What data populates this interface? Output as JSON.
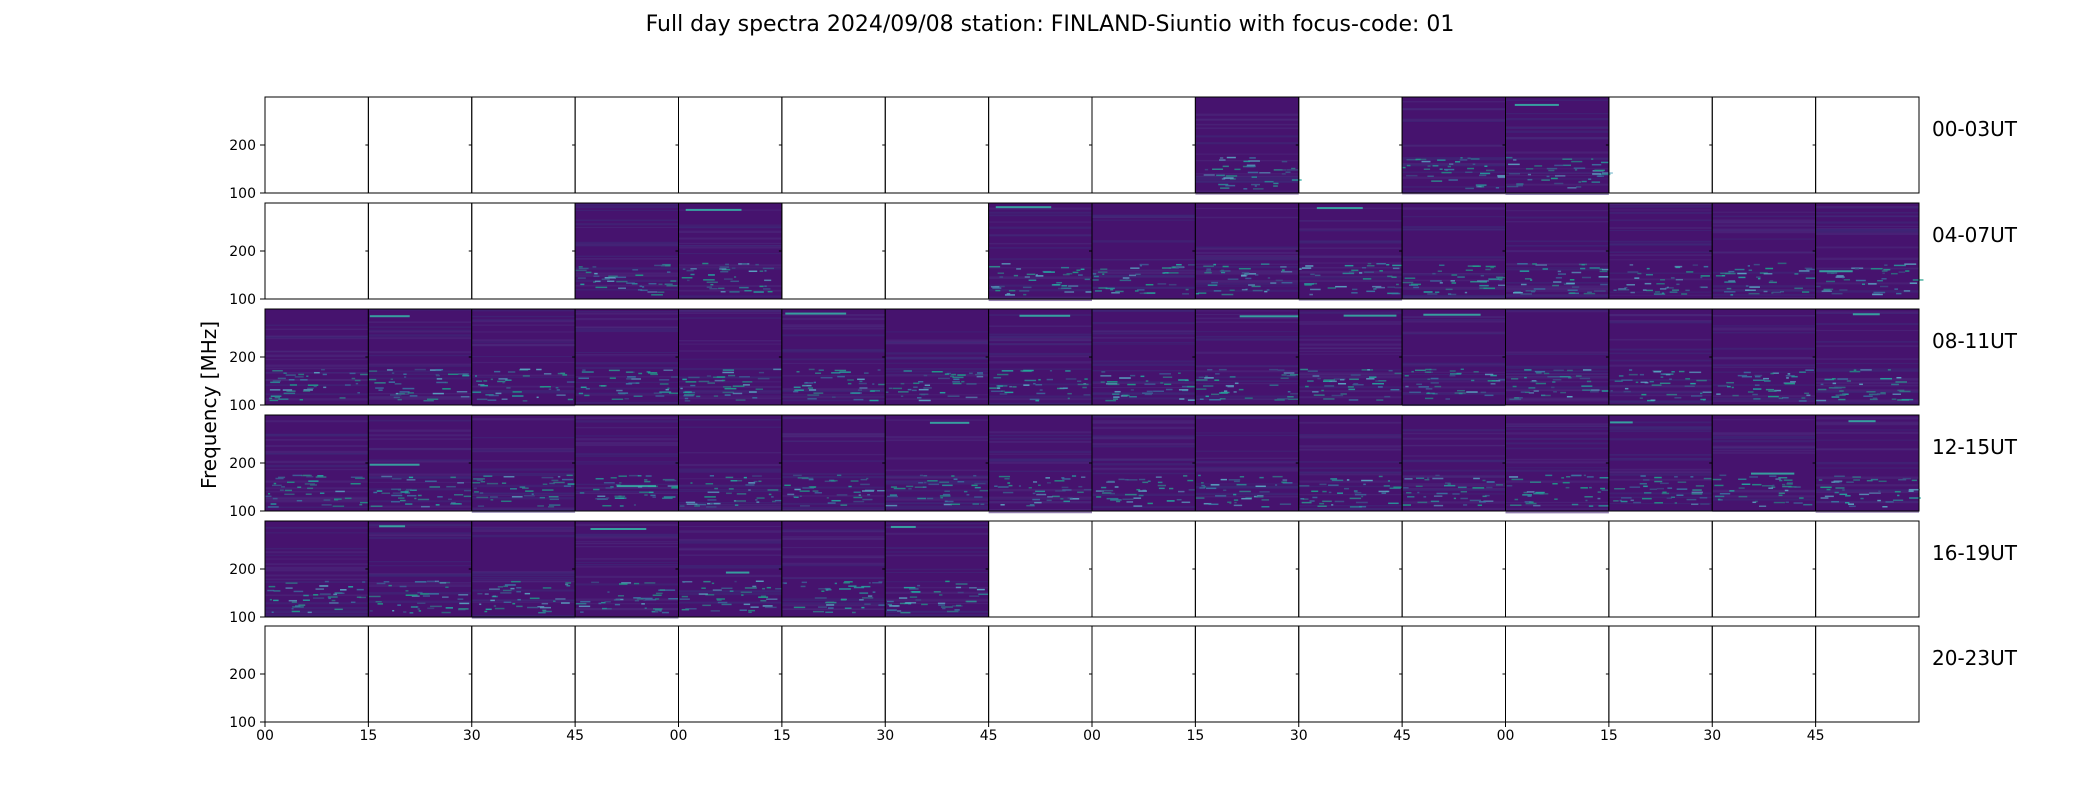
{
  "chart_data": {
    "type": "heatmap",
    "title": "Full day spectra 2024/09/08 station: FINLAND-Siuntio with focus-code: 01",
    "ylabel": "Frequency [MHz]",
    "xlabel": "",
    "y_ticks": [
      "100",
      "200"
    ],
    "x_ticks": [
      "00",
      "15",
      "30",
      "45",
      "00",
      "15",
      "30",
      "45",
      "00",
      "15",
      "30",
      "45",
      "00",
      "15",
      "30",
      "45"
    ],
    "colormap": "viridis",
    "background_color": "#46136e",
    "rows": [
      {
        "label": "00-03UT",
        "present": [
          0,
          0,
          0,
          0,
          0,
          0,
          0,
          0,
          0,
          1,
          0,
          1,
          1,
          0,
          0,
          0
        ]
      },
      {
        "label": "04-07UT",
        "present": [
          0,
          0,
          0,
          1,
          1,
          0,
          0,
          1,
          1,
          1,
          1,
          1,
          1,
          1,
          1,
          1
        ]
      },
      {
        "label": "08-11UT",
        "present": [
          1,
          1,
          1,
          1,
          1,
          1,
          1,
          1,
          1,
          1,
          1,
          1,
          1,
          1,
          1,
          1
        ]
      },
      {
        "label": "12-15UT",
        "present": [
          1,
          1,
          1,
          1,
          1,
          1,
          1,
          1,
          1,
          1,
          1,
          1,
          1,
          1,
          1,
          1
        ]
      },
      {
        "label": "16-19UT",
        "present": [
          1,
          1,
          1,
          1,
          1,
          1,
          1,
          0,
          0,
          0,
          0,
          0,
          0,
          0,
          0,
          0
        ]
      },
      {
        "label": "20-23UT",
        "present": [
          0,
          0,
          0,
          0,
          0,
          0,
          0,
          0,
          0,
          0,
          0,
          0,
          0,
          0,
          0,
          0
        ]
      }
    ]
  }
}
